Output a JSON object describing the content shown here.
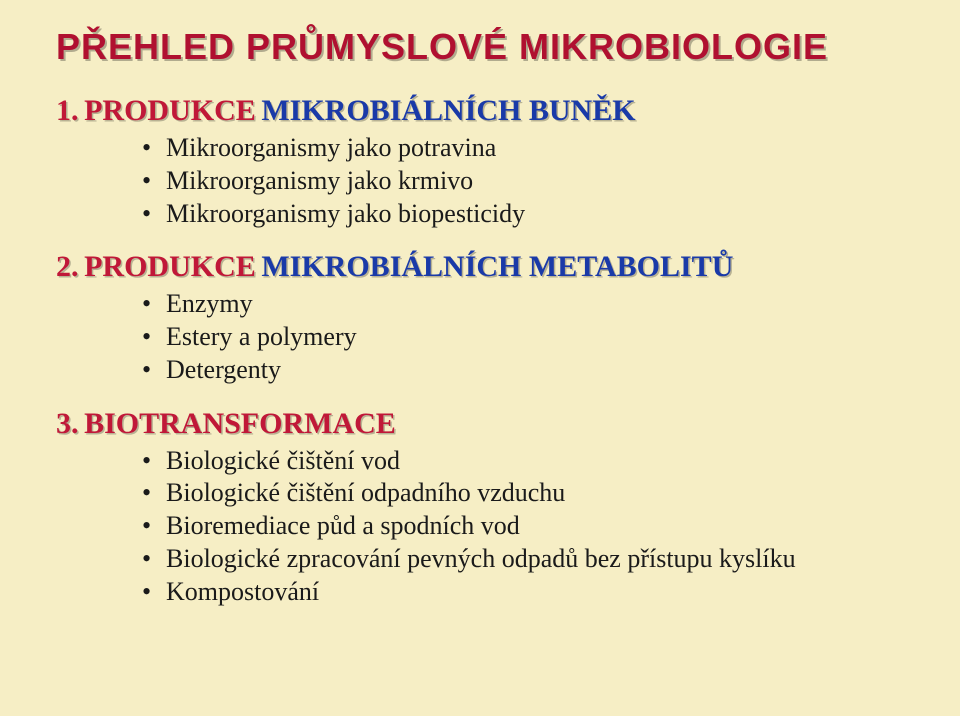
{
  "colors": {
    "background": "#f6eec5",
    "title_text": "#b01030",
    "title_shadow": "rgba(0,0,0,0.28)",
    "section_red": "#c01838",
    "section_blue": "#1a3aa8",
    "bullet_text": "#1a1a1a"
  },
  "typography": {
    "title_font": "Arial",
    "title_fontsize_pt": 27,
    "title_weight": "800",
    "section_font": "Comic Sans MS",
    "section_fontsize_pt": 22,
    "section_weight": "700",
    "bullet_font": "Comic Sans MS",
    "bullet_fontsize_pt": 20
  },
  "title": "PŘEHLED PRŮMYSLOVÉ MIKROBIOLOGIE",
  "sections": [
    {
      "num": "1.",
      "red": "PRODUKCE",
      "blue": "MIKROBIÁLNÍCH  BUNĚK",
      "bullets": [
        "Mikroorganismy jako potravina",
        "Mikroorganismy jako krmivo",
        "Mikroorganismy jako biopesticidy"
      ]
    },
    {
      "num": "2.",
      "red": "PRODUKCE",
      "blue": "MIKROBIÁLNÍCH  METABOLITŮ",
      "bullets": [
        "Enzymy",
        "Estery a polymery",
        "Detergenty"
      ]
    },
    {
      "num": "3.",
      "red": "BIOTRANSFORMACE",
      "blue": "",
      "bullets": [
        "Biologické čištění vod",
        "Biologické čištění odpadního vzduchu",
        "Bioremediace půd a spodních vod",
        "Biologické zpracování pevných odpadů bez přístupu kyslíku",
        "Kompostování"
      ]
    }
  ]
}
